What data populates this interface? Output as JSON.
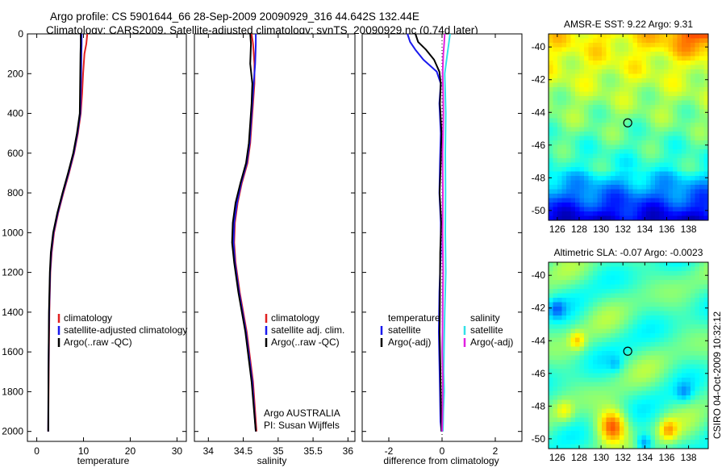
{
  "header": {
    "title_line1": "Argo profile: CS 5901644_66 28-Sep-2009 20090929_316 44.642S 132.44E",
    "title_line2": "Climatology: CARS2009. Satellite-adjusted climatology: synTS_20090929.nc (0.74d later)"
  },
  "side_label": "CSIRO 04-Oct-2009 10:32:12",
  "colors": {
    "red": "#e02020",
    "blue": "#1a1aee",
    "black": "#000000",
    "cyan": "#33e0e8",
    "magenta": "#e020e0"
  },
  "chart_data": [
    {
      "type": "line",
      "id": "temperature",
      "xlabel": "temperature",
      "ylabel": "",
      "xlim": [
        -2,
        32
      ],
      "ylim": [
        2050,
        0
      ],
      "xticks": [
        0,
        10,
        20,
        30
      ],
      "yticks": [
        0,
        200,
        400,
        600,
        800,
        1000,
        1200,
        1400,
        1600,
        1800,
        2000
      ],
      "legend": [
        "climatology",
        "satellite-adjusted climatology",
        "Argo(..raw -QC)"
      ],
      "series": [
        {
          "name": "climatology",
          "color": "#e02020",
          "x": [
            10.8,
            10.6,
            10.2,
            9.9,
            9.7,
            9.4,
            8.8,
            8.0,
            6.9,
            5.7,
            4.6,
            3.7,
            3.2,
            2.9,
            2.7,
            2.55,
            2.45
          ],
          "y": [
            0,
            50,
            100,
            200,
            300,
            400,
            500,
            600,
            700,
            800,
            900,
            1000,
            1100,
            1200,
            1400,
            1700,
            2000
          ]
        },
        {
          "name": "satellite-adjusted climatology",
          "color": "#1a1aee",
          "x": [
            9.6,
            9.6,
            9.55,
            9.5,
            9.4,
            9.3,
            8.7,
            7.9,
            6.8,
            5.6,
            4.5,
            3.6,
            3.1,
            2.85,
            2.65,
            2.5,
            2.45
          ],
          "y": [
            0,
            50,
            100,
            200,
            300,
            400,
            500,
            600,
            700,
            800,
            900,
            1000,
            1100,
            1200,
            1400,
            1700,
            2000
          ]
        },
        {
          "name": "Argo(..raw -QC)",
          "color": "#000000",
          "x": [
            9.4,
            9.4,
            9.35,
            9.3,
            9.25,
            9.2,
            8.6,
            7.8,
            6.7,
            5.5,
            4.4,
            3.5,
            3.0,
            2.8,
            2.6,
            2.5,
            2.45
          ],
          "y": [
            0,
            50,
            100,
            200,
            300,
            400,
            500,
            600,
            700,
            800,
            900,
            1000,
            1100,
            1200,
            1400,
            1700,
            2000
          ]
        }
      ]
    },
    {
      "type": "line",
      "id": "salinity",
      "xlabel": "salinity",
      "ylabel": "",
      "xlim": [
        33.8,
        36.1
      ],
      "ylim": [
        2050,
        0
      ],
      "xticks": [
        34,
        34.5,
        35,
        35.5,
        36
      ],
      "legend": [
        "climatology",
        "satellite adj. clim.",
        "Argo(..raw -QC)"
      ],
      "annotation": [
        "Argo AUSTRALIA",
        "PI: Susan Wijffels"
      ],
      "series": [
        {
          "name": "climatology",
          "color": "#e02020",
          "x": [
            34.62,
            34.64,
            34.66,
            34.66,
            34.64,
            34.62,
            34.6,
            34.56,
            34.48,
            34.42,
            34.38,
            34.37,
            34.39,
            34.45,
            34.55,
            34.64,
            34.69
          ],
          "y": [
            0,
            50,
            150,
            250,
            350,
            450,
            550,
            650,
            750,
            850,
            950,
            1050,
            1150,
            1300,
            1500,
            1750,
            2000
          ]
        },
        {
          "name": "satellite adj. clim.",
          "color": "#1a1aee",
          "x": [
            34.68,
            34.68,
            34.67,
            34.65,
            34.63,
            34.61,
            34.59,
            34.55,
            34.47,
            34.41,
            34.37,
            34.36,
            34.38,
            34.44,
            34.54,
            34.63,
            34.68
          ],
          "y": [
            0,
            50,
            150,
            250,
            350,
            450,
            550,
            650,
            750,
            850,
            950,
            1050,
            1150,
            1300,
            1500,
            1750,
            2000
          ]
        },
        {
          "name": "Argo(..raw -QC)",
          "color": "#000000",
          "x": [
            34.6,
            34.61,
            34.6,
            34.63,
            34.62,
            34.6,
            34.58,
            34.54,
            34.46,
            34.39,
            34.35,
            34.34,
            34.37,
            34.43,
            34.53,
            34.62,
            34.68
          ],
          "y": [
            0,
            50,
            150,
            250,
            350,
            450,
            550,
            650,
            750,
            850,
            950,
            1050,
            1150,
            1300,
            1500,
            1750,
            2000
          ]
        }
      ]
    },
    {
      "type": "line",
      "id": "difference",
      "xlabel": "difference from climatology",
      "ylabel": "",
      "xlim": [
        -3,
        3
      ],
      "ylim": [
        2050,
        0
      ],
      "xticks": [
        -2,
        0,
        2
      ],
      "legend": [
        "temperature",
        "satellite",
        "Argo(-adj)",
        "salinity",
        "satellite",
        "Argo(-adj)"
      ],
      "series": [
        {
          "name": "temperature satellite",
          "color": "#1a1aee",
          "x": [
            -1.3,
            -1.2,
            -1.0,
            -0.7,
            -0.2,
            -0.05,
            -0.1,
            -0.05,
            -0.08,
            -0.1,
            -0.05,
            -0.05,
            -0.1,
            -0.12,
            -0.1,
            -0.08,
            -0.06,
            -0.02
          ],
          "y": [
            0,
            40,
            80,
            130,
            190,
            250,
            350,
            500,
            650,
            800,
            950,
            1100,
            1300,
            1500,
            1650,
            1800,
            1950,
            2000
          ]
        },
        {
          "name": "temperature Argo(-adj)",
          "color": "#000000",
          "x": [
            -1.0,
            -0.9,
            -0.6,
            -0.3,
            -0.1,
            -0.05,
            -0.08,
            -0.02,
            -0.05,
            -0.09,
            -0.03,
            -0.07,
            -0.08,
            -0.09,
            -0.06,
            -0.04,
            -0.02
          ],
          "y": [
            0,
            40,
            80,
            130,
            190,
            250,
            350,
            500,
            650,
            800,
            950,
            1100,
            1300,
            1500,
            1700,
            1900,
            2000
          ]
        },
        {
          "name": "salinity satellite",
          "color": "#33e0e8",
          "x": [
            0.3,
            0.25,
            0.2,
            0.1,
            0.12,
            0.14,
            0.12,
            0.13,
            0.12,
            0.14,
            0.1,
            0.08,
            0.06,
            0.08,
            0.05,
            0.04,
            0.03
          ],
          "y": [
            0,
            50,
            100,
            200,
            300,
            400,
            600,
            800,
            1000,
            1200,
            1400,
            1550,
            1700,
            1800,
            1900,
            1960,
            2000
          ]
        },
        {
          "name": "salinity Argo(-adj)",
          "color": "#e020e0",
          "x": [
            0.1,
            0.08,
            0.05,
            0.02,
            0.04,
            0.05,
            0.02,
            0.03,
            0.02,
            0.04,
            0.02,
            0.01,
            0.03,
            0.02,
            0.01,
            0.0
          ],
          "y": [
            0,
            50,
            100,
            200,
            300,
            400,
            600,
            800,
            1000,
            1200,
            1400,
            1600,
            1750,
            1850,
            1950,
            2000
          ]
        }
      ]
    },
    {
      "type": "heatmap",
      "id": "amsre-sst",
      "title": "AMSR-E SST: 9.22  Argo: 9.31",
      "xlim": [
        125.2,
        139.8
      ],
      "ylim": [
        -50.6,
        -39.2
      ],
      "xticks": [
        126,
        128,
        130,
        132,
        134,
        136,
        138
      ],
      "yticks": [
        -40,
        -42,
        -44,
        -46,
        -48,
        -50
      ],
      "marker": [
        132.44,
        -44.642
      ]
    },
    {
      "type": "heatmap",
      "id": "altimetric-sla",
      "title": "Altimetric SLA: -0.07  Argo: -0.0023",
      "xlim": [
        125.2,
        139.8
      ],
      "ylim": [
        -50.6,
        -39.2
      ],
      "xticks": [
        126,
        128,
        130,
        132,
        134,
        136,
        138
      ],
      "yticks": [
        -40,
        -42,
        -44,
        -46,
        -48,
        -50
      ],
      "marker": [
        132.44,
        -44.642
      ]
    }
  ]
}
